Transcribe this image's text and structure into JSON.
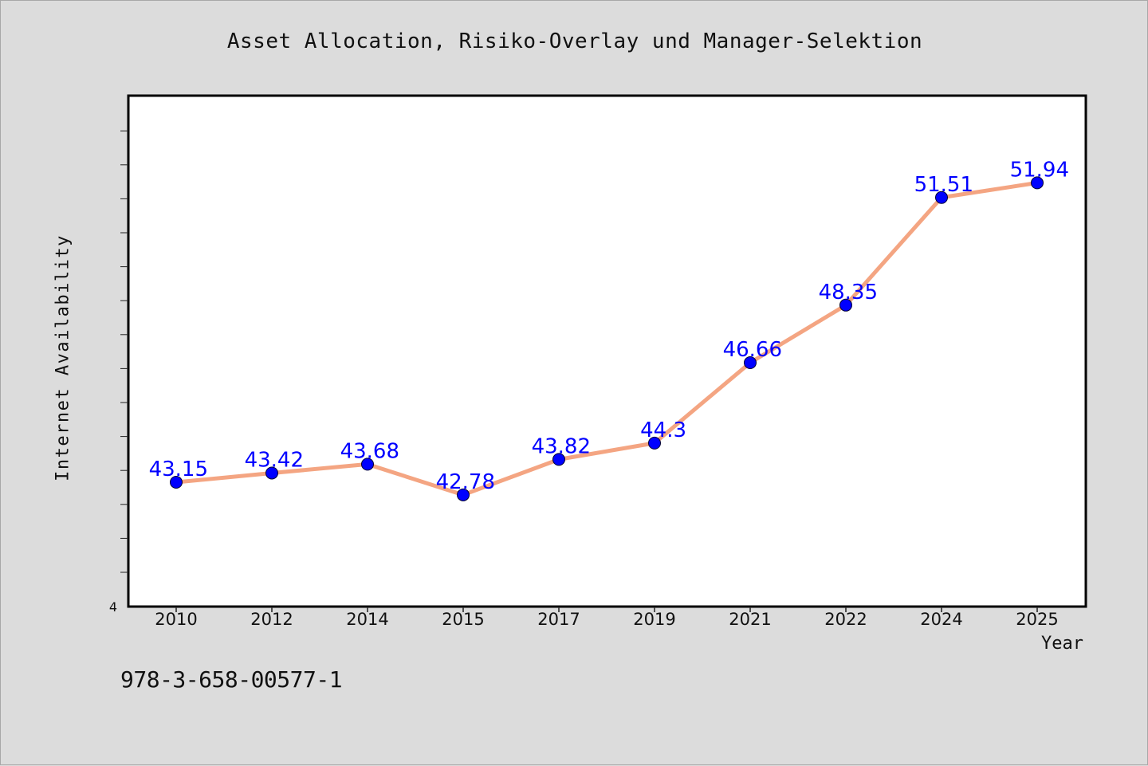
{
  "chart_data": {
    "type": "line",
    "title": "Asset Allocation, Risiko-Overlay und Manager-Selektion",
    "xlabel": "Year",
    "ylabel": "Internet Availability",
    "categories": [
      "2010",
      "2012",
      "2014",
      "2015",
      "2017",
      "2019",
      "2021",
      "2022",
      "2024",
      "2025"
    ],
    "series": [
      {
        "values": [
          43.15,
          43.42,
          43.68,
          42.78,
          43.82,
          44.3,
          46.66,
          48.35,
          51.51,
          51.94
        ],
        "labels": [
          "43.15",
          "43.42",
          "43.68",
          "42.78",
          "43.82",
          "44.3",
          "46.66",
          "48.35",
          "51.51",
          "51.94"
        ],
        "color": "#f4a582",
        "marker_color": "#0000ff"
      }
    ],
    "y_tick_label": "4",
    "ylim": [
      39.5,
      54.5
    ],
    "grid": false,
    "background": "#ffffff"
  },
  "footer": {
    "code": "978-3-658-00577-1"
  },
  "colors": {
    "page_background": "#dcdcdc",
    "label_color": "#0000ff",
    "line_color": "#f4a582"
  }
}
